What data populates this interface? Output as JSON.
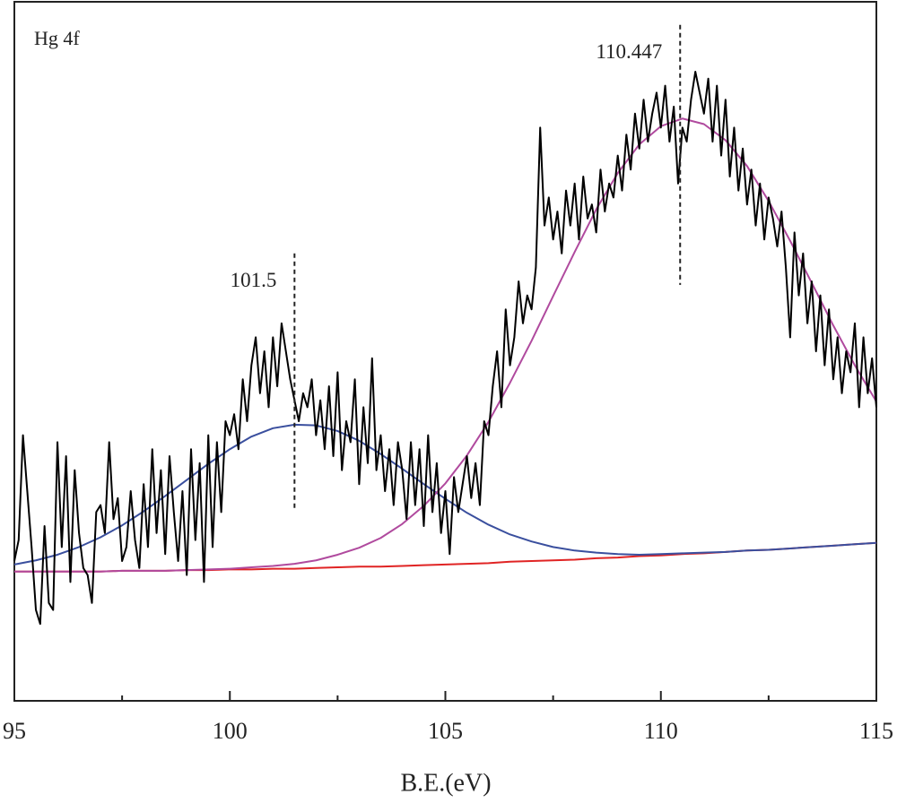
{
  "chart_data": {
    "type": "line",
    "title": "Hg 4f",
    "x_label": "B.E.(eV)",
    "xlim": [
      95,
      115
    ],
    "xticks": [
      95,
      100,
      105,
      110,
      115
    ],
    "xminor": [
      97.5,
      102.5,
      107.5,
      112.5
    ],
    "ylim": [
      0,
      100
    ],
    "annotations": [
      {
        "label": "101.5",
        "x": 101.5,
        "y": [
          27.2,
          64
        ]
      },
      {
        "label": "110.447",
        "x": 110.447,
        "y": [
          59.5,
          96.7
        ]
      }
    ],
    "series": [
      {
        "color": "#e02424",
        "x": [
          95,
          95.5,
          96,
          96.5,
          97,
          97.5,
          98,
          98.5,
          99,
          99.5,
          100,
          100.5,
          101,
          101.5,
          102,
          102.5,
          103,
          103.5,
          104,
          104.5,
          105,
          105.5,
          106,
          106.5,
          107,
          107.5,
          108,
          108.5,
          109,
          109.5,
          110,
          110.5,
          111,
          111.5,
          112,
          112.5,
          113,
          113.5,
          114,
          114.5,
          115
        ],
        "values": [
          18.5,
          18.5,
          18.5,
          18.5,
          18.5,
          18.6,
          18.6,
          18.6,
          18.7,
          18.7,
          18.8,
          18.8,
          18.9,
          18.9,
          19.0,
          19.1,
          19.2,
          19.2,
          19.3,
          19.4,
          19.5,
          19.6,
          19.7,
          19.9,
          20.0,
          20.1,
          20.2,
          20.4,
          20.5,
          20.7,
          20.8,
          21.0,
          21.1,
          21.3,
          21.5,
          21.6,
          21.8,
          22.0,
          22.2,
          22.4,
          22.6
        ]
      },
      {
        "color": "#3a4f9e",
        "x": [
          95,
          95.5,
          96,
          96.5,
          97,
          97.5,
          98,
          98.5,
          99,
          99.5,
          100,
          100.5,
          101,
          101.5,
          102,
          102.5,
          103,
          103.5,
          104,
          104.5,
          105,
          105.5,
          106,
          106.5,
          107,
          107.5,
          108,
          108.5,
          109,
          109.5,
          110,
          110.5,
          111,
          111.5,
          112,
          112.5,
          113,
          113.5,
          114,
          114.5,
          115
        ],
        "values": [
          19.5,
          20.1,
          20.9,
          22.0,
          23.4,
          25.1,
          27.1,
          29.3,
          31.6,
          33.9,
          36.0,
          37.8,
          39.0,
          39.5,
          39.4,
          38.6,
          37.2,
          35.3,
          33.2,
          31.0,
          28.9,
          26.9,
          25.2,
          23.8,
          22.8,
          22.0,
          21.5,
          21.2,
          21.0,
          20.9,
          21.0,
          21.1,
          21.2,
          21.3,
          21.5,
          21.6,
          21.8,
          22.0,
          22.2,
          22.4,
          22.6
        ]
      },
      {
        "color": "#b04a9e",
        "x": [
          95,
          95.5,
          96,
          96.5,
          97,
          97.5,
          98,
          98.5,
          99,
          99.5,
          100,
          100.5,
          101,
          101.5,
          102,
          102.5,
          103,
          103.5,
          104,
          104.5,
          105,
          105.5,
          106,
          106.5,
          107,
          107.5,
          108,
          108.5,
          109,
          109.5,
          110,
          110.5,
          111,
          111.5,
          112,
          112.5,
          113,
          113.5,
          114,
          114.5,
          115
        ],
        "values": [
          18.5,
          18.5,
          18.5,
          18.5,
          18.5,
          18.6,
          18.6,
          18.6,
          18.7,
          18.8,
          18.9,
          19.1,
          19.3,
          19.6,
          20.1,
          20.9,
          21.9,
          23.3,
          25.3,
          27.9,
          31.1,
          35.1,
          39.9,
          45.5,
          51.5,
          57.9,
          64.2,
          70.3,
          75.5,
          79.6,
          82.2,
          83.3,
          82.5,
          80.2,
          76.5,
          71.5,
          65.8,
          59.8,
          53.7,
          48.0,
          42.8
        ]
      },
      {
        "color": "#000000",
        "x": [
          95,
          95.1,
          95.2,
          95.3,
          95.4,
          95.5,
          95.6,
          95.7,
          95.8,
          95.9,
          96,
          96.1,
          96.2,
          96.3,
          96.4,
          96.5,
          96.6,
          96.7,
          96.8,
          96.9,
          97,
          97.1,
          97.2,
          97.3,
          97.4,
          97.5,
          97.6,
          97.7,
          97.8,
          97.9,
          98,
          98.1,
          98.2,
          98.3,
          98.4,
          98.5,
          98.6,
          98.7,
          98.8,
          98.9,
          99,
          99.1,
          99.2,
          99.3,
          99.4,
          99.5,
          99.6,
          99.7,
          99.8,
          99.9,
          100,
          100.1,
          100.2,
          100.3,
          100.4,
          100.5,
          100.6,
          100.7,
          100.8,
          100.9,
          101,
          101.1,
          101.2,
          101.3,
          101.4,
          101.5,
          101.6,
          101.7,
          101.8,
          101.9,
          102,
          102.1,
          102.2,
          102.3,
          102.4,
          102.5,
          102.6,
          102.7,
          102.8,
          102.9,
          103,
          103.1,
          103.2,
          103.3,
          103.4,
          103.5,
          103.6,
          103.7,
          103.8,
          103.9,
          104,
          104.1,
          104.2,
          104.3,
          104.4,
          104.5,
          104.6,
          104.7,
          104.8,
          104.9,
          105,
          105.1,
          105.2,
          105.3,
          105.4,
          105.5,
          105.6,
          105.7,
          105.8,
          105.9,
          106,
          106.1,
          106.2,
          106.3,
          106.4,
          106.5,
          106.6,
          106.7,
          106.8,
          106.9,
          107,
          107.1,
          107.2,
          107.3,
          107.4,
          107.5,
          107.6,
          107.7,
          107.8,
          107.9,
          108,
          108.1,
          108.2,
          108.3,
          108.4,
          108.5,
          108.6,
          108.7,
          108.8,
          108.9,
          109,
          109.1,
          109.2,
          109.3,
          109.4,
          109.5,
          109.6,
          109.7,
          109.8,
          109.9,
          110,
          110.1,
          110.2,
          110.3,
          110.4,
          110.5,
          110.6,
          110.7,
          110.8,
          110.9,
          111,
          111.1,
          111.2,
          111.3,
          111.4,
          111.5,
          111.6,
          111.7,
          111.8,
          111.9,
          112,
          112.1,
          112.2,
          112.3,
          112.4,
          112.5,
          112.6,
          112.7,
          112.8,
          112.9,
          113,
          113.1,
          113.2,
          113.3,
          113.4,
          113.5,
          113.6,
          113.7,
          113.8,
          113.9,
          114,
          114.1,
          114.2,
          114.3,
          114.4,
          114.5,
          114.6,
          114.7,
          114.8,
          114.9,
          115
        ],
        "values": [
          20,
          23,
          38,
          30,
          22,
          13,
          11,
          25,
          14,
          13,
          37,
          22,
          35,
          17,
          33,
          24,
          19,
          18,
          14,
          27,
          28,
          24,
          37,
          26,
          29,
          20,
          22,
          30,
          23,
          19,
          31,
          22,
          36,
          24,
          33,
          21,
          35,
          27,
          20,
          30,
          18,
          36,
          23,
          34,
          17,
          38,
          22,
          37,
          27,
          40,
          38,
          41,
          36,
          46,
          40,
          48,
          52,
          44,
          50,
          42,
          52,
          45,
          54,
          50,
          46,
          43,
          40,
          44,
          42,
          46,
          38,
          43,
          36,
          45,
          35,
          47,
          33,
          40,
          37,
          46,
          31,
          42,
          34,
          49,
          33,
          38,
          30,
          36,
          28,
          37,
          33,
          26,
          37,
          28,
          36,
          25,
          38,
          27,
          34,
          24,
          30,
          21,
          32,
          27,
          31,
          35,
          29,
          34,
          28,
          40,
          38,
          45,
          50,
          42,
          56,
          48,
          52,
          60,
          54,
          58,
          56,
          62,
          82,
          68,
          72,
          66,
          70,
          64,
          73,
          68,
          74,
          66,
          75,
          69,
          71,
          67,
          76,
          70,
          74,
          72,
          78,
          73,
          81,
          76,
          84,
          79,
          86,
          80,
          84,
          87,
          82,
          88,
          80,
          85,
          74,
          82,
          80,
          86,
          90,
          87,
          84,
          89,
          80,
          88,
          78,
          86,
          75,
          82,
          73,
          79,
          71,
          76,
          68,
          74,
          66,
          72,
          69,
          65,
          70,
          62,
          52,
          67,
          58,
          64,
          54,
          60,
          50,
          58,
          48,
          56,
          46,
          52,
          44,
          50,
          47,
          54,
          42,
          52,
          44,
          49,
          42
        ]
      }
    ]
  }
}
